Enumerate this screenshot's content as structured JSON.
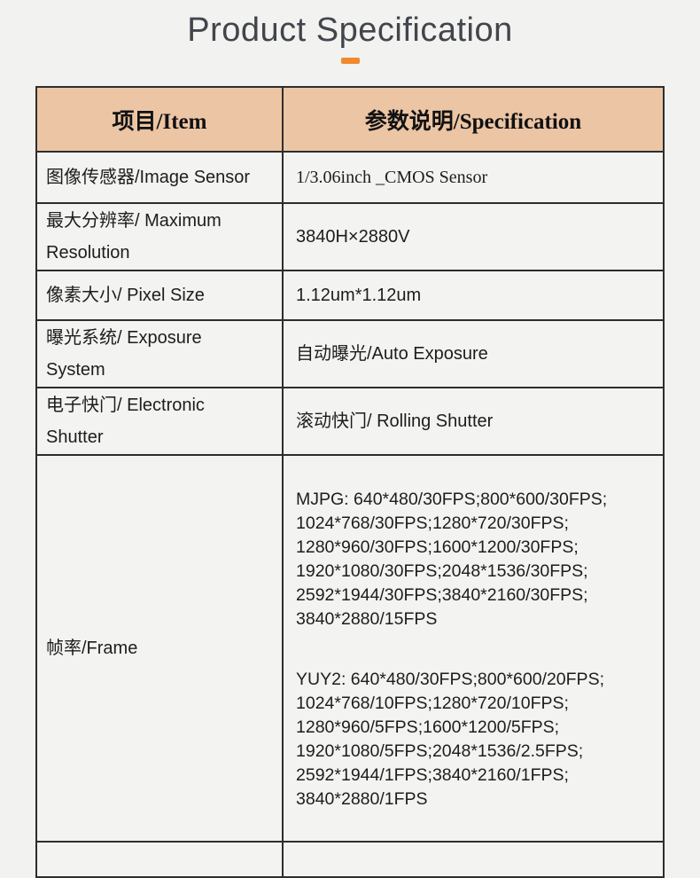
{
  "colors": {
    "accent_orange": "#f08a2d",
    "header_row_background": "#ecc5a4",
    "table_border": "#2e2d2c",
    "page_background": "#f2f2f0",
    "title_text": "#42454b",
    "body_text": "#1d1d1d"
  },
  "header": {
    "title": "Product Specification"
  },
  "table": {
    "columns": {
      "item": "项目/Item",
      "spec": "参数说明/Specification"
    },
    "rows": [
      {
        "item": "图像传感器/Image Sensor",
        "spec": "1/3.06inch _CMOS Sensor"
      },
      {
        "item": "最大分辨率/ Maximum\nResolution",
        "spec": "3840H×2880V"
      },
      {
        "item": "像素大小/ Pixel Size",
        "spec": "1.12um*1.12um"
      },
      {
        "item": "曝光系统/ Exposure\nSystem",
        "spec": "自动曝光/Auto Exposure"
      },
      {
        "item": "电子快门/ Electronic\nShutter",
        "spec": "滚动快门/ Rolling Shutter"
      },
      {
        "item": "帧率/Frame",
        "spec_mjpg": [
          "MJPG: 640*480/30FPS;800*600/30FPS;",
          "1024*768/30FPS;1280*720/30FPS;",
          "1280*960/30FPS;1600*1200/30FPS;",
          "1920*1080/30FPS;2048*1536/30FPS;",
          "2592*1944/30FPS;3840*2160/30FPS;",
          "3840*2880/15FPS"
        ],
        "spec_yuy2": [
          "YUY2: 640*480/30FPS;800*600/20FPS;",
          "1024*768/10FPS;1280*720/10FPS;",
          "1280*960/5FPS;1600*1200/5FPS;",
          "1920*1080/5FPS;2048*1536/2.5FPS;",
          "2592*1944/1FPS;3840*2160/1FPS;",
          "3840*2880/1FPS"
        ]
      }
    ]
  }
}
